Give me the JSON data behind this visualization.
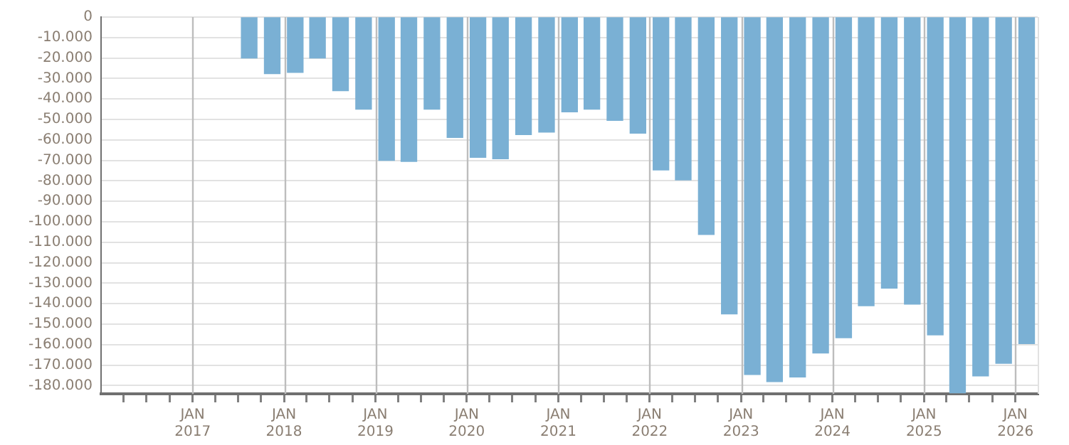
{
  "chart_data": {
    "type": "bar",
    "color": "#7ab0d4",
    "x": [
      "2017-08-15",
      "2017-11-15",
      "2018-02-15",
      "2018-05-15",
      "2018-08-15",
      "2018-11-15",
      "2019-02-15",
      "2019-05-15",
      "2019-08-15",
      "2019-11-15",
      "2020-02-15",
      "2020-05-15",
      "2020-08-15",
      "2020-11-15",
      "2021-02-15",
      "2021-05-15",
      "2021-08-15",
      "2021-11-15",
      "2022-02-15",
      "2022-05-15",
      "2022-08-15",
      "2022-11-15",
      "2023-02-15",
      "2023-05-15",
      "2023-08-15",
      "2023-11-15",
      "2024-02-15",
      "2024-05-15",
      "2024-08-15",
      "2024-11-15",
      "2025-02-15",
      "2025-05-15",
      "2025-08-15",
      "2025-11-15",
      "2026-02-15"
    ],
    "values": [
      -20000,
      -27600,
      -27000,
      -20000,
      -36000,
      -45000,
      -70000,
      -70500,
      -45000,
      -58800,
      -68500,
      -69200,
      -57400,
      -56200,
      -46300,
      -45000,
      -50500,
      -56700,
      -74700,
      -79500,
      -106200,
      -145000,
      -174600,
      -178000,
      -175800,
      -164100,
      -156600,
      -141000,
      -132400,
      -140200,
      -155200,
      -183500,
      -175300,
      -169100,
      -159500
    ],
    "xlim": [
      "2016-01",
      "2026-03-31"
    ],
    "xticks": [
      {
        "value": "2016-04",
        "label": null
      },
      {
        "value": "2016-07",
        "label": null
      },
      {
        "value": "2016-10",
        "label": null
      },
      {
        "value": "2017-01",
        "label": "JAN 2017"
      },
      {
        "value": "2017-04",
        "label": null
      },
      {
        "value": "2017-07",
        "label": null
      },
      {
        "value": "2017-10",
        "label": null
      },
      {
        "value": "2018-01",
        "label": "JAN 2018"
      },
      {
        "value": "2018-04",
        "label": null
      },
      {
        "value": "2018-07",
        "label": null
      },
      {
        "value": "2018-10",
        "label": null
      },
      {
        "value": "2019-01",
        "label": "JAN 2019"
      },
      {
        "value": "2019-04",
        "label": null
      },
      {
        "value": "2019-07",
        "label": null
      },
      {
        "value": "2019-10",
        "label": null
      },
      {
        "value": "2020-01",
        "label": "JAN 2020"
      },
      {
        "value": "2020-04",
        "label": null
      },
      {
        "value": "2020-07",
        "label": null
      },
      {
        "value": "2020-10",
        "label": null
      },
      {
        "value": "2021-01",
        "label": "JAN 2021"
      },
      {
        "value": "2021-04",
        "label": null
      },
      {
        "value": "2021-07",
        "label": null
      },
      {
        "value": "2021-10",
        "label": null
      },
      {
        "value": "2022-01",
        "label": "JAN 2022"
      },
      {
        "value": "2022-04",
        "label": null
      },
      {
        "value": "2022-07",
        "label": null
      },
      {
        "value": "2022-10",
        "label": null
      },
      {
        "value": "2023-01",
        "label": "JAN 2023"
      },
      {
        "value": "2023-04",
        "label": null
      },
      {
        "value": "2023-07",
        "label": null
      },
      {
        "value": "2023-10",
        "label": null
      },
      {
        "value": "2024-01",
        "label": "JAN 2024"
      },
      {
        "value": "2024-04",
        "label": null
      },
      {
        "value": "2024-07",
        "label": null
      },
      {
        "value": "2024-10",
        "label": null
      },
      {
        "value": "2025-01",
        "label": "JAN 2025"
      },
      {
        "value": "2025-04",
        "label": null
      },
      {
        "value": "2025-07",
        "label": null
      },
      {
        "value": "2025-10",
        "label": null
      },
      {
        "value": "2026-01",
        "label": "JAN 2026"
      }
    ],
    "ylim": [
      -184000,
      0
    ],
    "yticks": [
      {
        "value": -180000,
        "label": "-180.000"
      },
      {
        "value": -170000,
        "label": "-170.000"
      },
      {
        "value": -160000,
        "label": "-160.000"
      },
      {
        "value": -150000,
        "label": "-150.000"
      },
      {
        "value": -140000,
        "label": "-140.000"
      },
      {
        "value": -130000,
        "label": "-130.000"
      },
      {
        "value": -120000,
        "label": "-120.000"
      },
      {
        "value": -110000,
        "label": "-110.000"
      },
      {
        "value": -100000,
        "label": "-100.000"
      },
      {
        "value": -90000,
        "label": "-90.000"
      },
      {
        "value": -80000,
        "label": "-80.000"
      },
      {
        "value": -70000,
        "label": "-70.000"
      },
      {
        "value": -60000,
        "label": "-60.000"
      },
      {
        "value": -50000,
        "label": "-50.000"
      },
      {
        "value": -40000,
        "label": "-40.000"
      },
      {
        "value": -30000,
        "label": "-30.000"
      },
      {
        "value": -20000,
        "label": "-20.000"
      },
      {
        "value": -10000,
        "label": "-10.000"
      },
      0
    ],
    "grid": true
  }
}
